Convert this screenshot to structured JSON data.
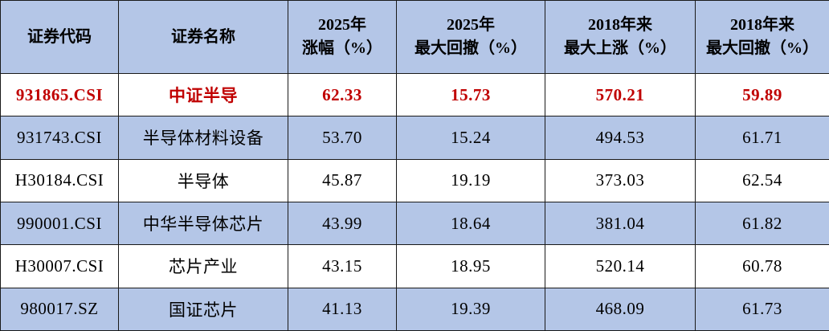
{
  "colors": {
    "header_bg": "#b4c6e7",
    "alt_row_bg": "#b4c6e7",
    "plain_row_bg": "#ffffff",
    "highlight_text": "#c00000",
    "text": "#000000",
    "border": "#1a1a1a"
  },
  "table": {
    "columns": [
      {
        "id": "code",
        "label": "证券代码"
      },
      {
        "id": "name",
        "label": "证券名称"
      },
      {
        "id": "gain-2025",
        "label": "2025年\n涨幅（%）"
      },
      {
        "id": "drawdown-2025",
        "label": "2025年\n最大回撤（%）"
      },
      {
        "id": "rise-2018",
        "label": "2018年来\n最大上涨（%）"
      },
      {
        "id": "drawdown-2018",
        "label": "2018年来\n最大回撤（%）"
      }
    ],
    "rows": [
      {
        "cells": [
          "931865.CSI",
          "中证半导",
          "62.33",
          "15.73",
          "570.21",
          "59.89"
        ],
        "highlight": true,
        "alt": false
      },
      {
        "cells": [
          "931743.CSI",
          "半导体材料设备",
          "53.70",
          "15.24",
          "494.53",
          "61.71"
        ],
        "highlight": false,
        "alt": true
      },
      {
        "cells": [
          "H30184.CSI",
          "半导体",
          "45.87",
          "19.19",
          "373.03",
          "62.54"
        ],
        "highlight": false,
        "alt": false
      },
      {
        "cells": [
          "990001.CSI",
          "中华半导体芯片",
          "43.99",
          "18.64",
          "381.04",
          "61.82"
        ],
        "highlight": false,
        "alt": true
      },
      {
        "cells": [
          "H30007.CSI",
          "芯片产业",
          "43.15",
          "18.95",
          "520.14",
          "60.78"
        ],
        "highlight": false,
        "alt": false
      },
      {
        "cells": [
          "980017.SZ",
          "国证芯片",
          "41.13",
          "19.39",
          "468.09",
          "61.73"
        ],
        "highlight": false,
        "alt": true
      }
    ]
  },
  "chart_data": {
    "type": "table",
    "title": "",
    "columns": [
      "证券代码",
      "证券名称",
      "2025年涨幅（%）",
      "2025年最大回撤（%）",
      "2018年来最大上涨（%）",
      "2018年来最大回撤（%）"
    ],
    "rows": [
      [
        "931865.CSI",
        "中证半导",
        62.33,
        15.73,
        570.21,
        59.89
      ],
      [
        "931743.CSI",
        "半导体材料设备",
        53.7,
        15.24,
        494.53,
        61.71
      ],
      [
        "H30184.CSI",
        "半导体",
        45.87,
        19.19,
        373.03,
        62.54
      ],
      [
        "990001.CSI",
        "中华半导体芯片",
        43.99,
        18.64,
        381.04,
        61.82
      ],
      [
        "H30007.CSI",
        "芯片产业",
        43.15,
        18.95,
        520.14,
        60.78
      ],
      [
        "980017.SZ",
        "国证芯片",
        41.13,
        19.39,
        468.09,
        61.73
      ]
    ],
    "highlighted_row_index": 0,
    "layout_hints": {
      "header_two_line": true,
      "alternating_row_fill": "blue-on-even-data-rows",
      "highlight_style": "bold red text"
    }
  }
}
